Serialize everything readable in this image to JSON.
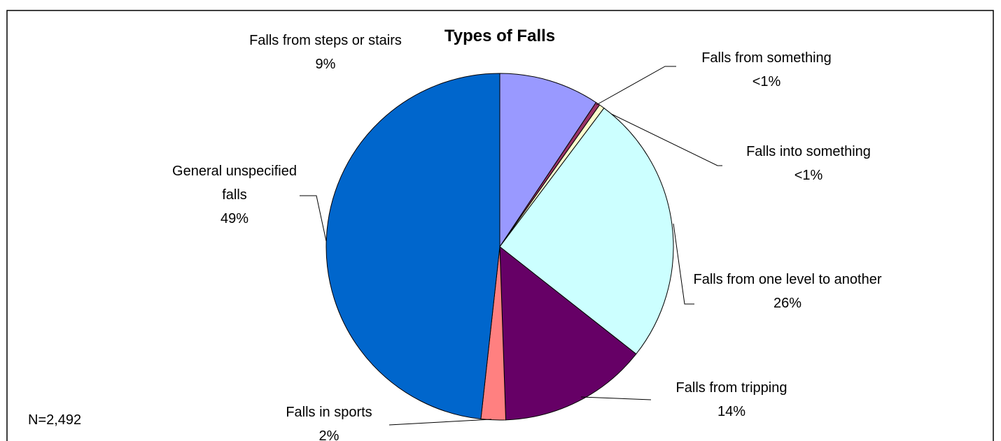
{
  "chart_data": {
    "type": "pie",
    "title": "Types of Falls",
    "categories": [
      "Falls from steps or stairs",
      "Falls from something",
      "Falls into something",
      "Falls from one level to another",
      "Falls from tripping",
      "Falls in sports",
      "General unspecified falls"
    ],
    "values": [
      9.4,
      0.4,
      0.5,
      25.5,
      13.9,
      2.3,
      48.5
    ],
    "value_labels": [
      "9%",
      "<1%",
      "<1%",
      "26%",
      "14%",
      "2%",
      "49%"
    ],
    "colors": [
      "#9999ff",
      "#993366",
      "#ffffcc",
      "#ccffff",
      "#660066",
      "#ff8080",
      "#0066cc"
    ],
    "annotations": [
      "N=2,492"
    ]
  }
}
